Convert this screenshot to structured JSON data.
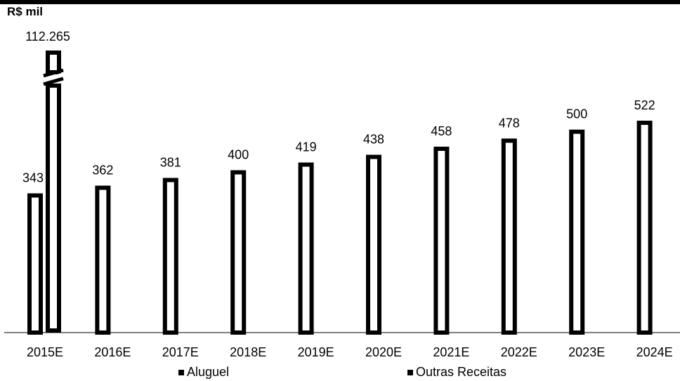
{
  "chart_data": {
    "type": "bar",
    "unit_label": "R$ mil",
    "categories": [
      "2015E",
      "2016E",
      "2017E",
      "2018E",
      "2019E",
      "2020E",
      "2021E",
      "2022E",
      "2023E",
      "2024E"
    ],
    "series": [
      {
        "name": "Aluguel",
        "values": [
          343,
          362,
          381,
          400,
          419,
          438,
          458,
          478,
          500,
          522
        ],
        "value_labels": [
          "343",
          "362",
          "381",
          "400",
          "419",
          "438",
          "458",
          "478",
          "500",
          "522"
        ]
      },
      {
        "name": "Outras Receitas",
        "values": [
          112265,
          null,
          null,
          null,
          null,
          null,
          null,
          null,
          null,
          null
        ],
        "value_labels": [
          "112.265",
          "",
          "",
          "",
          "",
          "",
          "",
          "",
          "",
          ""
        ],
        "axis_break": true
      }
    ],
    "ylim": [
      0,
      550
    ],
    "grid": false,
    "legend_position": "bottom",
    "colors": {
      "bar_border": "#000000",
      "bar_fill": "#ffffff",
      "legend_swatch": "#000000"
    }
  }
}
